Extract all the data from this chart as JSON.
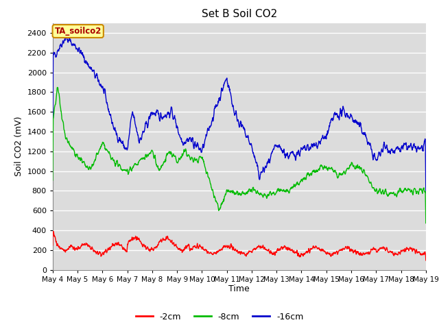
{
  "title": "Set B Soil CO2",
  "xlabel": "Time",
  "ylabel": "Soil CO2 (mV)",
  "ylim": [
    0,
    2500
  ],
  "yticks": [
    0,
    200,
    400,
    600,
    800,
    1000,
    1200,
    1400,
    1600,
    1800,
    2000,
    2200,
    2400
  ],
  "fig_bg_color": "#ffffff",
  "plot_bg_color": "#dcdcdc",
  "grid_color": "#ffffff",
  "line_colors": {
    "2cm": "#ff0000",
    "8cm": "#00bb00",
    "16cm": "#0000cc"
  },
  "line_width": 1.0,
  "legend_labels": [
    "-2cm",
    "-8cm",
    "-16cm"
  ],
  "annotation_text": "TA_soilco2",
  "annotation_bg": "#ffff99",
  "annotation_border": "#cc8800",
  "annotation_text_color": "#aa0000",
  "n_points": 1500,
  "xtick_labels": [
    "May 4",
    "May 5",
    "May 6",
    "May 7",
    "May 8",
    "May 9",
    "May 10",
    "May 11",
    "May 12",
    "May 13",
    "May 14",
    "May 15",
    "May 16",
    "May 17",
    "May 18",
    "May 19"
  ]
}
